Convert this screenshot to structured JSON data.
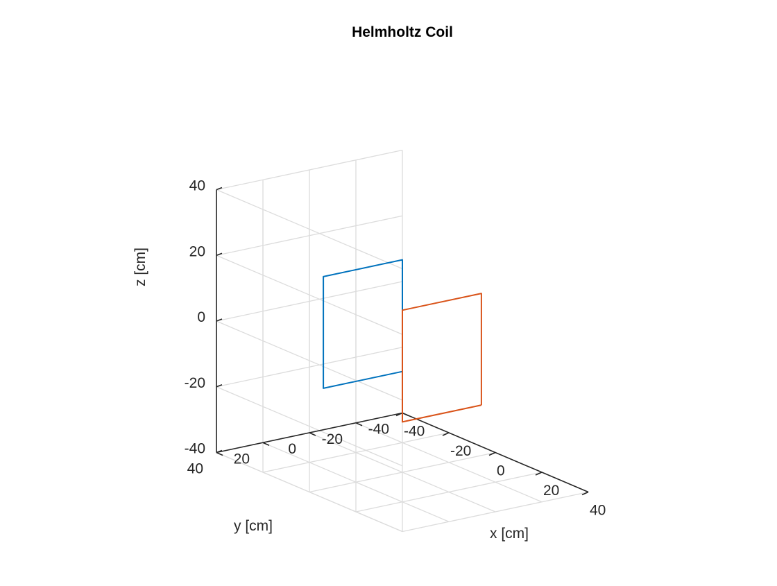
{
  "chart_data": {
    "type": "line3d",
    "title": "Helmholtz Coil",
    "xlabel": "x [cm]",
    "ylabel": "y [cm]",
    "zlabel": "z [cm]",
    "xlim": [
      -40,
      40
    ],
    "ylim": [
      -40,
      40
    ],
    "zlim": [
      -40,
      40
    ],
    "xticks": [
      -40,
      -20,
      0,
      20,
      40
    ],
    "yticks": [
      -40,
      -20,
      0,
      20,
      40
    ],
    "zticks": [
      -40,
      -20,
      0,
      20,
      40
    ],
    "xtick_labels": [
      "-40",
      "-20",
      "0",
      "20",
      "40"
    ],
    "ytick_labels": [
      "-40",
      "-20",
      "0",
      "20",
      "40"
    ],
    "ztick_labels": [
      "-40",
      "-20",
      "0",
      "20",
      "40"
    ],
    "grid": true,
    "view": "3d isometric (azimuth -37.5, elevation 30)",
    "series": [
      {
        "color": "#0072BD",
        "x": [
          -17,
          -17,
          -17,
          -17,
          -17
        ],
        "y": [
          -17,
          17,
          17,
          -17,
          -17
        ],
        "z": [
          -17,
          -17,
          17,
          17,
          -17
        ]
      },
      {
        "color": "#D95319",
        "x": [
          17,
          17,
          17,
          17,
          17
        ],
        "y": [
          -17,
          17,
          17,
          -17,
          -17
        ],
        "z": [
          -17,
          -17,
          17,
          17,
          -17
        ]
      }
    ]
  }
}
